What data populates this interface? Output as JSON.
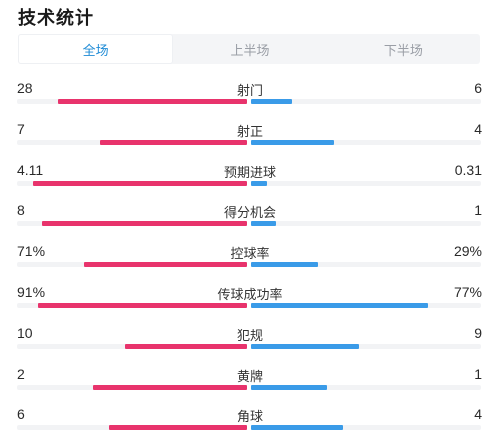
{
  "title": "技术统计",
  "tabs": [
    {
      "label": "全场",
      "active": true
    },
    {
      "label": "上半场",
      "active": false
    },
    {
      "label": "下半场",
      "active": false
    }
  ],
  "colors": {
    "home": "#e8336c",
    "away": "#3a9be8",
    "active_tab": "#1e8bd6"
  },
  "stats": [
    {
      "label": "射门",
      "home": "28",
      "away": "6",
      "home_fill": 0.82,
      "away_fill": 0.18
    },
    {
      "label": "射正",
      "home": "7",
      "away": "4",
      "home_fill": 0.64,
      "away_fill": 0.36
    },
    {
      "label": "预期进球",
      "home": "4.11",
      "away": "0.31",
      "home_fill": 0.93,
      "away_fill": 0.07
    },
    {
      "label": "得分机会",
      "home": "8",
      "away": "1",
      "home_fill": 0.89,
      "away_fill": 0.11
    },
    {
      "label": "控球率",
      "home": "71%",
      "away": "29%",
      "home_fill": 0.71,
      "away_fill": 0.29
    },
    {
      "label": "传球成功率",
      "home": "91%",
      "away": "77%",
      "home_fill": 0.91,
      "away_fill": 0.77
    },
    {
      "label": "犯规",
      "home": "10",
      "away": "9",
      "home_fill": 0.53,
      "away_fill": 0.47
    },
    {
      "label": "黄牌",
      "home": "2",
      "away": "1",
      "home_fill": 0.67,
      "away_fill": 0.33
    },
    {
      "label": "角球",
      "home": "6",
      "away": "4",
      "home_fill": 0.6,
      "away_fill": 0.4
    }
  ]
}
